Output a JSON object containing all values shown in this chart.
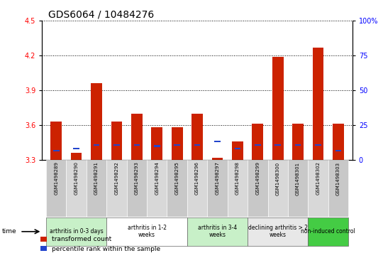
{
  "title": "GDS6064 / 10484276",
  "samples": [
    "GSM1498289",
    "GSM1498290",
    "GSM1498291",
    "GSM1498292",
    "GSM1498293",
    "GSM1498294",
    "GSM1498295",
    "GSM1498296",
    "GSM1498297",
    "GSM1498298",
    "GSM1498299",
    "GSM1498300",
    "GSM1498301",
    "GSM1498302",
    "GSM1498303"
  ],
  "red_values": [
    3.63,
    3.36,
    3.96,
    3.63,
    3.7,
    3.58,
    3.58,
    3.7,
    3.32,
    3.46,
    3.61,
    4.19,
    3.61,
    4.27,
    3.61
  ],
  "blue_values": [
    3.38,
    3.4,
    3.43,
    3.43,
    3.43,
    3.42,
    3.43,
    3.43,
    3.46,
    3.4,
    3.43,
    3.43,
    3.43,
    3.43,
    3.38
  ],
  "ylim_left": [
    3.3,
    4.5
  ],
  "ylim_right": [
    0,
    100
  ],
  "yticks_left": [
    3.3,
    3.6,
    3.9,
    4.2,
    4.5
  ],
  "yticks_right": [
    0,
    25,
    50,
    75,
    100
  ],
  "groups": [
    {
      "label": "arthritis in 0-3 days",
      "cols": [
        0,
        1,
        2
      ],
      "color": "#c8f0c8"
    },
    {
      "label": "arthritis in 1-2\nweeks",
      "cols": [
        3,
        4,
        5,
        6
      ],
      "color": "#ffffff"
    },
    {
      "label": "arthritis in 3-4\nweeks",
      "cols": [
        7,
        8,
        9
      ],
      "color": "#c8f0c8"
    },
    {
      "label": "declining arthritis > 2\nweeks",
      "cols": [
        10,
        11,
        12
      ],
      "color": "#e8e8e8"
    },
    {
      "label": "non-induced control",
      "cols": [
        13,
        14
      ],
      "color": "#44cc44"
    }
  ],
  "bar_color": "#cc2200",
  "blue_color": "#2244cc",
  "title_fontsize": 10,
  "bar_width": 0.55
}
